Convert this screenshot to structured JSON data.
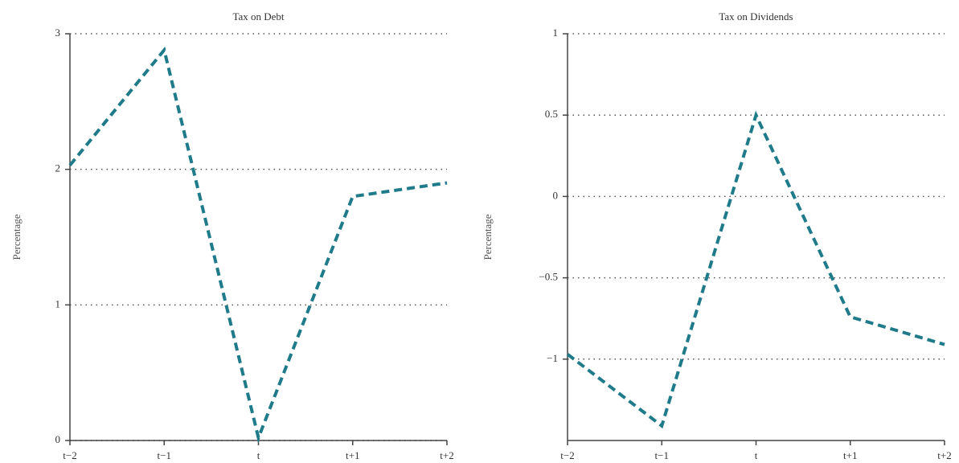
{
  "chart_data": [
    {
      "type": "line",
      "title": "Tax on Debt",
      "y_label": "Percentage",
      "categories": [
        "t−2",
        "t−1",
        "t",
        "t+1",
        "t+2"
      ],
      "values": [
        2.03,
        2.88,
        0.02,
        1.8,
        1.9
      ],
      "color": "#1f7a8a",
      "ylim": [
        0,
        3
      ],
      "yticks": [
        0,
        1,
        2,
        3
      ],
      "grid": true
    },
    {
      "type": "line",
      "title": "Tax on Dividends",
      "y_label": "Percentage",
      "categories": [
        "t−2",
        "t−1",
        "t",
        "t+1",
        "t+2"
      ],
      "values": [
        -0.97,
        -1.41,
        0.5,
        -0.74,
        -0.91
      ],
      "color": "#1f7a8a",
      "ylim": [
        -1.5,
        1
      ],
      "yticks": [
        {
          "value": -1,
          "label": "−1"
        },
        {
          "value": -0.5,
          "label": "−0.5"
        },
        0,
        0.5,
        1
      ],
      "grid": true
    }
  ]
}
